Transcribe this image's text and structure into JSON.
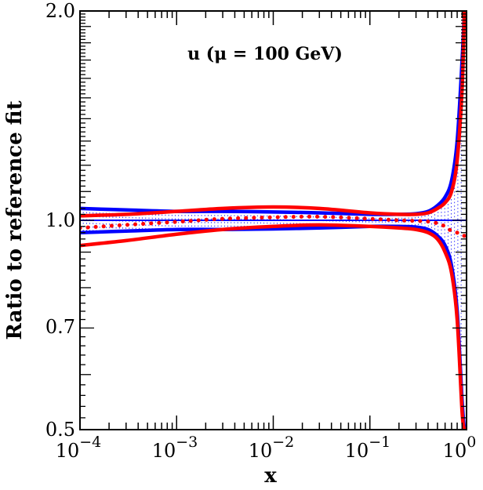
{
  "chart_data": {
    "type": "line",
    "title": "",
    "annotation": "u (μ = 100 GeV)",
    "xlabel": "x",
    "ylabel": "Ratio to reference fit",
    "xscale": "log",
    "yscale": "log",
    "xlim": [
      0.0001,
      1
    ],
    "ylim": [
      0.5,
      2.0
    ],
    "x_tick_labels": [
      {
        "base": "10",
        "exp": "−4"
      },
      {
        "base": "10",
        "exp": "−3"
      },
      {
        "base": "10",
        "exp": "−2"
      },
      {
        "base": "10",
        "exp": "−1"
      },
      {
        "base": "10",
        "exp": "0"
      }
    ],
    "y_tick_labels": [
      "0.5",
      "0.7",
      "1.0",
      "2.0"
    ],
    "reference_line": 1.0,
    "x": [
      0.0001,
      0.0003,
      0.001,
      0.003,
      0.01,
      0.03,
      0.1,
      0.2,
      0.3,
      0.4,
      0.5,
      0.6,
      0.7,
      0.8,
      0.9,
      0.95
    ],
    "series": [
      {
        "color": "#0000ff",
        "style": "solid",
        "band": "upper",
        "values": [
          1.04,
          1.035,
          1.03,
          1.03,
          1.028,
          1.025,
          1.02,
          1.02,
          1.022,
          1.03,
          1.05,
          1.08,
          1.14,
          1.3,
          1.7,
          2.0
        ]
      },
      {
        "color": "#0000ff",
        "style": "solid",
        "band": "lower",
        "values": [
          0.96,
          0.965,
          0.97,
          0.97,
          0.972,
          0.975,
          0.98,
          0.98,
          0.978,
          0.97,
          0.95,
          0.92,
          0.86,
          0.74,
          0.55,
          0.5
        ]
      },
      {
        "color": "#ff0000",
        "style": "solid",
        "band": "upper",
        "values": [
          1.015,
          1.02,
          1.03,
          1.04,
          1.045,
          1.04,
          1.025,
          1.02,
          1.02,
          1.025,
          1.04,
          1.06,
          1.1,
          1.22,
          1.55,
          2.0
        ]
      },
      {
        "color": "#ff0000",
        "style": "solid",
        "band": "lower",
        "values": [
          0.92,
          0.935,
          0.955,
          0.97,
          0.98,
          0.985,
          0.98,
          0.975,
          0.97,
          0.96,
          0.94,
          0.9,
          0.84,
          0.72,
          0.53,
          0.5
        ]
      },
      {
        "color": "#ff0000",
        "style": "dotted",
        "band": "central",
        "values": [
          0.975,
          0.985,
          0.995,
          1.005,
          1.01,
          1.012,
          1.005,
          1.0,
          0.998,
          0.996,
          0.99,
          0.98,
          0.965,
          0.96,
          0.95,
          0.95
        ]
      }
    ],
    "band_fill_color": "#0000ff",
    "grid": false,
    "legend": "none"
  }
}
